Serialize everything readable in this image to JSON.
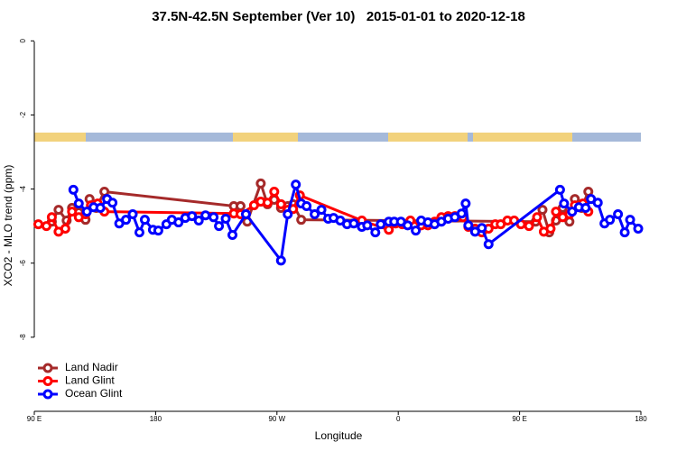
{
  "chart_data": {
    "type": "line",
    "title": "37.5N-42.5N September (Ver 10)   2015-01-01 to 2020-12-18",
    "x_label": "Longitude",
    "y_label": "XCO2 - MLO trend (ppm)",
    "xlim": [
      90,
      540
    ],
    "ylim": [
      -10,
      0.3
    ],
    "xticks": [
      {
        "value": 90,
        "label": "90 E"
      },
      {
        "value": 180,
        "label": "180"
      },
      {
        "value": 270,
        "label": "90 W"
      },
      {
        "value": 360,
        "label": "0"
      },
      {
        "value": 450,
        "label": "90 E"
      },
      {
        "value": 540,
        "label": "180"
      }
    ],
    "yticks": [
      0,
      -2,
      -4,
      -6,
      -8
    ],
    "legend": "bottomleft",
    "series": [
      {
        "name": "Land Nadir",
        "color": "#a52a2a",
        "x": [
          103,
          108,
          114,
          118,
          123,
          128,
          131,
          136,
          142,
          238,
          243,
          248,
          258,
          263,
          268,
          273,
          278,
          282,
          288,
          462,
          467,
          472,
          477,
          482,
          487,
          491,
          496,
          501
        ],
        "values": [
          -4.88,
          -4.56,
          -4.85,
          -4.51,
          -4.63,
          -4.83,
          -4.27,
          -4.51,
          -4.07,
          -4.46,
          -4.46,
          -4.88,
          -3.85,
          -4.41,
          -4.29,
          -4.51,
          -4.46,
          -4.41,
          -4.83,
          -4.88,
          -4.56,
          -5.17,
          -4.85,
          -4.51,
          -4.88,
          -4.27,
          -4.51,
          -4.07
        ]
      },
      {
        "name": "Land Glint",
        "color": "#ff0000",
        "x": [
          93,
          99,
          103,
          108,
          113,
          118,
          123,
          128,
          132,
          137,
          142,
          238,
          243,
          253,
          258,
          263,
          268,
          273,
          278,
          282,
          287,
          333,
          353,
          358,
          363,
          369,
          377,
          382,
          387,
          392,
          397,
          402,
          408,
          412,
          417,
          422,
          427,
          432,
          436,
          441,
          446,
          451,
          457,
          463,
          468,
          473,
          477,
          482,
          487,
          491,
          497,
          501
        ],
        "values": [
          -4.95,
          -5.0,
          -4.76,
          -5.15,
          -5.07,
          -4.61,
          -4.76,
          -4.68,
          -4.44,
          -4.39,
          -4.61,
          -4.66,
          -4.68,
          -4.44,
          -4.34,
          -4.37,
          -4.07,
          -4.41,
          -4.56,
          -4.54,
          -4.17,
          -4.85,
          -5.1,
          -4.93,
          -4.95,
          -4.85,
          -4.98,
          -4.98,
          -4.88,
          -4.76,
          -4.73,
          -4.73,
          -4.76,
          -5.02,
          -5.07,
          -5.17,
          -5.07,
          -4.95,
          -4.95,
          -4.85,
          -4.85,
          -4.95,
          -5.0,
          -4.76,
          -5.15,
          -5.07,
          -4.61,
          -4.76,
          -4.68,
          -4.44,
          -4.39,
          -4.61
        ]
      },
      {
        "name": "Ocean Glint",
        "color": "#0000ff",
        "x": [
          119,
          123,
          129,
          134,
          139,
          144,
          148,
          153,
          158,
          163,
          168,
          172,
          178,
          182,
          188,
          192,
          197,
          202,
          207,
          212,
          217,
          223,
          227,
          232,
          237,
          247,
          273,
          278,
          284,
          288,
          292,
          298,
          303,
          308,
          312,
          317,
          322,
          327,
          333,
          337,
          343,
          347,
          353,
          357,
          362,
          367,
          373,
          377,
          382,
          387,
          392,
          397,
          402,
          407,
          410,
          412,
          417,
          422,
          427,
          480,
          483,
          489,
          494,
          499,
          503,
          508,
          513,
          517,
          523,
          528,
          532,
          538
        ],
        "values": [
          -4.02,
          -4.39,
          -4.61,
          -4.49,
          -4.51,
          -4.27,
          -4.37,
          -4.93,
          -4.83,
          -4.68,
          -5.17,
          -4.83,
          -5.1,
          -5.12,
          -4.95,
          -4.83,
          -4.9,
          -4.78,
          -4.73,
          -4.85,
          -4.71,
          -4.76,
          -5.0,
          -4.8,
          -5.24,
          -4.68,
          -5.93,
          -4.68,
          -3.88,
          -4.39,
          -4.46,
          -4.68,
          -4.56,
          -4.8,
          -4.78,
          -4.85,
          -4.95,
          -4.93,
          -5.02,
          -4.98,
          -5.17,
          -4.95,
          -4.88,
          -4.88,
          -4.88,
          -4.98,
          -5.12,
          -4.85,
          -4.9,
          -4.95,
          -4.88,
          -4.8,
          -4.76,
          -4.66,
          -4.39,
          -4.98,
          -5.15,
          -5.05,
          -5.49,
          -4.02,
          -4.39,
          -4.61,
          -4.49,
          -4.51,
          -4.27,
          -4.37,
          -4.93,
          -4.83,
          -4.68,
          -5.17,
          -4.83,
          -5.07
        ]
      }
    ]
  }
}
